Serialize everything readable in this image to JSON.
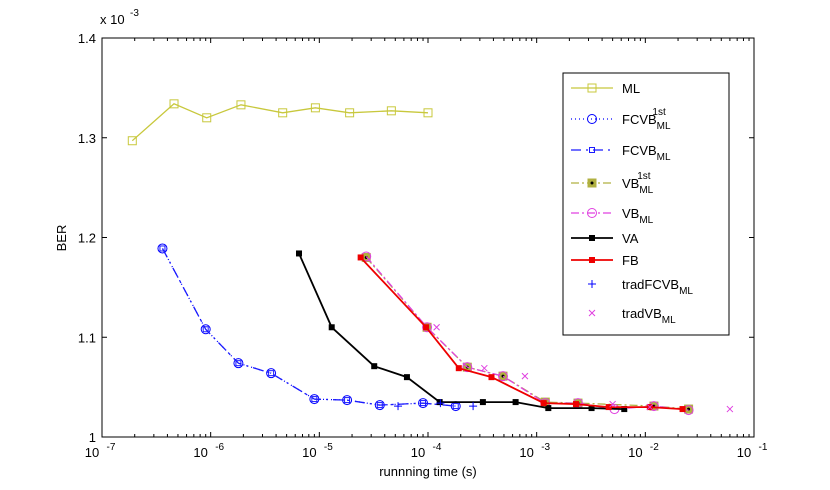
{
  "chart_data": {
    "type": "line",
    "title": "",
    "xlabel": "runnning time (s)",
    "ylabel": "BER",
    "xscale": "log",
    "xlim": [
      1e-07,
      0.1
    ],
    "ylim": [
      1.0,
      1.4
    ],
    "y_multiplier_label": "x 10",
    "y_multiplier_exp": "-3",
    "x_ticks": [
      {
        "value": 1e-07,
        "base": "10",
        "exp": "-7"
      },
      {
        "value": 1e-06,
        "base": "10",
        "exp": "-6"
      },
      {
        "value": 1e-05,
        "base": "10",
        "exp": "-5"
      },
      {
        "value": 0.0001,
        "base": "10",
        "exp": "-4"
      },
      {
        "value": 0.001,
        "base": "10",
        "exp": "-3"
      },
      {
        "value": 0.01,
        "base": "10",
        "exp": "-2"
      },
      {
        "value": 0.1,
        "base": "10",
        "exp": "-1"
      }
    ],
    "y_ticks": [
      {
        "value": 1.0,
        "label": "1"
      },
      {
        "value": 1.1,
        "label": "1.1"
      },
      {
        "value": 1.2,
        "label": "1.2"
      },
      {
        "value": 1.3,
        "label": "1.3"
      },
      {
        "value": 1.4,
        "label": "1.4"
      }
    ],
    "legend_position": "top-right",
    "series": [
      {
        "name": "ML",
        "sub": "",
        "sup": "",
        "color": "#c8c83c",
        "dash": "",
        "marker": "square",
        "x": [
          1.9e-07,
          4.6e-07,
          9.2e-07,
          1.9e-06,
          4.6e-06,
          9.2e-06,
          1.9e-05,
          4.6e-05,
          0.0001
        ],
        "y": [
          1.297,
          1.334,
          1.32,
          1.333,
          1.325,
          1.33,
          1.325,
          1.327,
          1.325
        ]
      },
      {
        "name": "FCVB",
        "sub": "ML",
        "sup": "1st",
        "color": "#0000ff",
        "dash": "1,3",
        "marker": "circle",
        "x": [
          3.6e-07,
          9e-07,
          1.8e-06,
          3.6e-06,
          9e-06,
          1.8e-05,
          3.6e-05,
          9e-05,
          0.00018
        ],
        "y": [
          1.189,
          1.108,
          1.074,
          1.064,
          1.038,
          1.037,
          1.032,
          1.034,
          1.031
        ]
      },
      {
        "name": "FCVB",
        "sub": "ML",
        "sup": "",
        "color": "#1a1aff",
        "dash": "10,5,2,5",
        "marker": "square-small",
        "x": [
          3.6e-07,
          9e-07,
          1.8e-06,
          3.6e-06,
          9e-06,
          1.8e-05,
          3.6e-05,
          9e-05,
          0.00018
        ],
        "y": [
          1.189,
          1.108,
          1.074,
          1.064,
          1.038,
          1.037,
          1.032,
          1.034,
          1.031
        ]
      },
      {
        "name": "VB",
        "sub": "ML",
        "sup": "1st",
        "color": "#b0b040",
        "dash": "8,3,2,3",
        "marker": "filled-square",
        "x": [
          2.7e-05,
          9.8e-05,
          0.00023,
          0.00049,
          0.0012,
          0.0024,
          0.012,
          0.025
        ],
        "y": [
          1.18,
          1.11,
          1.07,
          1.061,
          1.035,
          1.034,
          1.031,
          1.028
        ]
      },
      {
        "name": "VB",
        "sub": "ML",
        "sup": "",
        "color": "#e040e0",
        "dash": "8,3,2,3",
        "marker": "circle",
        "x": [
          2.7e-05,
          9.8e-05,
          0.00023,
          0.00049,
          0.0012,
          0.0024,
          0.0052,
          0.012,
          0.025
        ],
        "y": [
          1.181,
          1.11,
          1.07,
          1.061,
          1.034,
          1.034,
          1.028,
          1.031,
          1.027
        ]
      },
      {
        "name": "VA",
        "sub": "",
        "sup": "",
        "color": "#000000",
        "dash": "",
        "marker": "filled-square-small",
        "x": [
          6.5e-06,
          1.3e-05,
          3.2e-05,
          6.4e-05,
          0.000128,
          0.00032,
          0.00064,
          0.00128,
          0.0032,
          0.0064
        ],
        "y": [
          1.184,
          1.11,
          1.071,
          1.06,
          1.035,
          1.035,
          1.035,
          1.029,
          1.029,
          1.028
        ]
      },
      {
        "name": "FB",
        "sub": "",
        "sup": "",
        "color": "#ee0000",
        "dash": "",
        "marker": "filled-square-small",
        "x": [
          2.4e-05,
          9.6e-05,
          0.000192,
          0.000384,
          0.00116,
          0.0023,
          0.0046,
          0.011,
          0.022
        ],
        "y": [
          1.18,
          1.11,
          1.069,
          1.06,
          1.034,
          1.033,
          1.03,
          1.03,
          1.028
        ]
      },
      {
        "name": "tradFCVB",
        "sub": "ML",
        "sup": "",
        "color": "#0000ff",
        "dash": "none",
        "marker": "plus",
        "x": [
          5.3e-05,
          0.00013,
          0.00026
        ],
        "y": [
          1.031,
          1.034,
          1.031
        ]
      },
      {
        "name": "tradVB",
        "sub": "ML",
        "sup": "",
        "color": "#e040e0",
        "dash": "none",
        "marker": "x",
        "x": [
          0.00012,
          0.00033,
          0.00078,
          0.005,
          0.011,
          0.06
        ],
        "y": [
          1.11,
          1.069,
          1.061,
          1.033,
          1.03,
          1.028
        ]
      }
    ]
  }
}
